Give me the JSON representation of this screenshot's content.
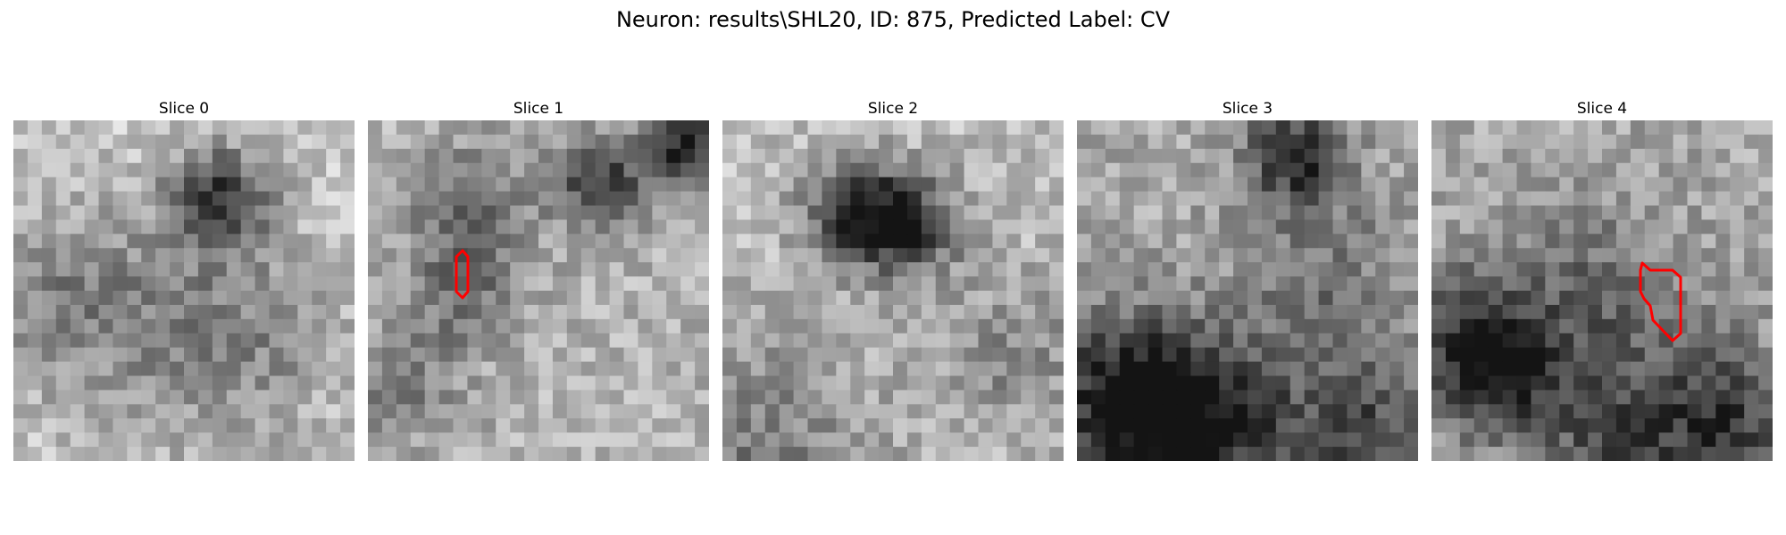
{
  "figure": {
    "title": "Neuron: results\\SHL20, ID: 875, Predicted Label: CV"
  },
  "slices": [
    {
      "label": "Slice 0",
      "has_contour": false
    },
    {
      "label": "Slice 1",
      "has_contour": true
    },
    {
      "label": "Slice 2",
      "has_contour": false
    },
    {
      "label": "Slice 3",
      "has_contour": false
    },
    {
      "label": "Slice 4",
      "has_contour": true
    }
  ],
  "colors": {
    "contour": "#ff0000",
    "background": "#ffffff"
  },
  "colormap": "gray"
}
